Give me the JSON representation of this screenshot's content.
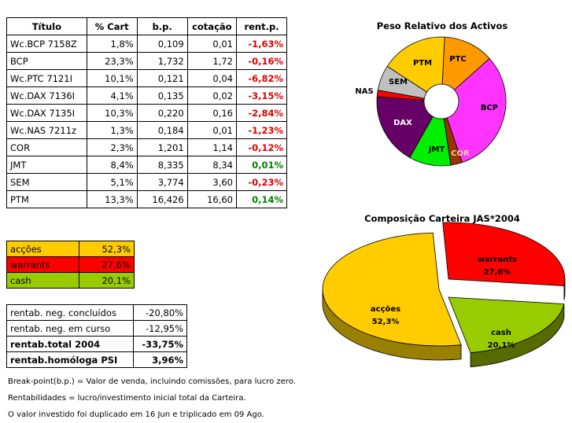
{
  "holdings_table": {
    "headers": [
      "Título",
      "% Cart",
      "b.p.",
      "cotação",
      "rent.p."
    ],
    "rows": [
      {
        "titulo": "Wc.BCP 7158Z",
        "cart": "1,8%",
        "bp": "0,109",
        "cotacao": "0,01",
        "rent": "-1,63%",
        "sign": "neg"
      },
      {
        "titulo": "BCP",
        "cart": "23,3%",
        "bp": "1,732",
        "cotacao": "1,72",
        "rent": "-0,16%",
        "sign": "neg"
      },
      {
        "titulo": "Wc.PTC 7121I",
        "cart": "10,1%",
        "bp": "0,121",
        "cotacao": "0,04",
        "rent": "-6,82%",
        "sign": "neg"
      },
      {
        "titulo": "Wc.DAX 7136I",
        "cart": "4,1%",
        "bp": "0,135",
        "cotacao": "0,02",
        "rent": "-3,15%",
        "sign": "neg"
      },
      {
        "titulo": "Wc.DAX 7135I",
        "cart": "10,3%",
        "bp": "0,220",
        "cotacao": "0,16",
        "rent": "-2,84%",
        "sign": "neg"
      },
      {
        "titulo": "Wc.NAS 7211z",
        "cart": "1,3%",
        "bp": "0,184",
        "cotacao": "0,01",
        "rent": "-1,23%",
        "sign": "neg"
      },
      {
        "titulo": "COR",
        "cart": "2,3%",
        "bp": "1,201",
        "cotacao": "1,14",
        "rent": "-0,12%",
        "sign": "neg"
      },
      {
        "titulo": "JMT",
        "cart": "8,4%",
        "bp": "8,335",
        "cotacao": "8,34",
        "rent": "0,01%",
        "sign": "pos"
      },
      {
        "titulo": "SEM",
        "cart": "5,1%",
        "bp": "3,774",
        "cotacao": "3,60",
        "rent": "-0,23%",
        "sign": "neg"
      },
      {
        "titulo": "PTM",
        "cart": "13,3%",
        "bp": "16,426",
        "cotacao": "16,60",
        "rent": "0,14%",
        "sign": "pos"
      }
    ]
  },
  "allocation_table": [
    {
      "label": "acções",
      "value": "52,3%",
      "color": "#ffcc00"
    },
    {
      "label": "warrants",
      "value": "27,6%",
      "color": "#ff0000"
    },
    {
      "label": "cash",
      "value": "20,1%",
      "color": "#99cc00"
    }
  ],
  "returns_table": [
    {
      "label": "rentab. neg. concluídos",
      "value": "-20,80%",
      "bold": false
    },
    {
      "label": "rentab. neg. em curso",
      "value": "-12,95%",
      "bold": false
    },
    {
      "label": "rentab.total 2004",
      "value": "-33,75%",
      "bold": true
    },
    {
      "label": "rentab.homóloga PSI",
      "value": "3,96%",
      "bold": true
    }
  ],
  "notes": {
    "line1": "Break-point(b.p.) = Valor de venda, incluindo comissões, para lucro zero.",
    "line2": "Rentabilidades = lucro/investimento inicial total da Carteira.",
    "line3": "O valor investido foi duplicado em 16 Jun e triplicado em 09 Ago."
  },
  "chart_data": [
    {
      "type": "pie",
      "title": "Peso Relativo dos Activos",
      "categories": [
        "PTC",
        "BCP",
        "COR",
        "JMT",
        "DAX",
        "NAS",
        "SEM",
        "PTM"
      ],
      "values": [
        10.1,
        25.1,
        2.3,
        8.4,
        14.4,
        1.3,
        5.1,
        13.3
      ],
      "colors": [
        "#ff9900",
        "#ff33ff",
        "#993300",
        "#00ee00",
        "#660066",
        "#ff0000",
        "#c0c0c0",
        "#ffcc00"
      ]
    },
    {
      "type": "pie",
      "title": "Composição Carteira JAS*2004",
      "categories": [
        "warrants",
        "cash",
        "acções"
      ],
      "labels": [
        "27,6%",
        "20,1%",
        "52,3%"
      ],
      "values": [
        27.6,
        20.1,
        52.3
      ],
      "colors": [
        "#ff0000",
        "#99cc00",
        "#ffcc00"
      ]
    }
  ]
}
